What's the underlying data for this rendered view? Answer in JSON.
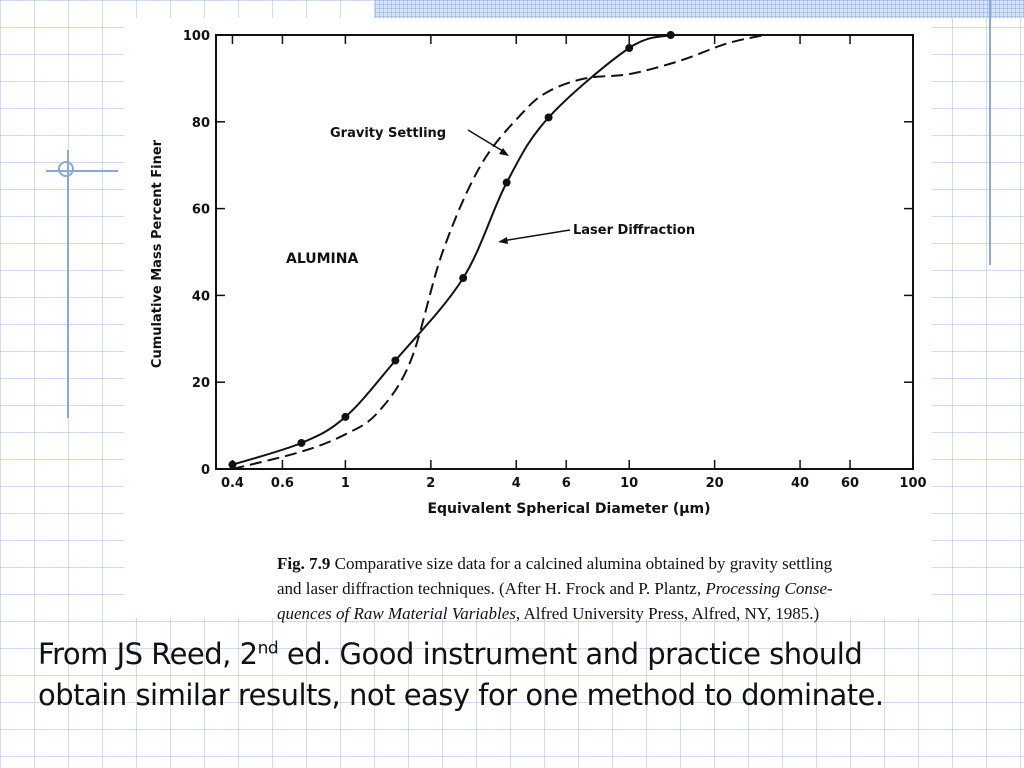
{
  "slide": {
    "footer_line1_pre": "From JS Reed, 2",
    "footer_sup": "nd",
    "footer_line1_post": " ed. Good instrument and practice should",
    "footer_line2": "obtain similar results, not easy for one method  to dominate."
  },
  "caption": {
    "fig_label": "Fig. 7.9",
    "line1": "  Comparative size data for a calcined alumina obtained by gravity settling",
    "line2_pre": "and laser diffraction techniques. (After H. Frock and P. Plantz, ",
    "line2_italic": "Processing Conse-",
    "line3_italic": "quences of Raw Material Variables",
    "line3_post": ", Alfred University Press, Alfred, NY, 1985.)"
  },
  "chart_data": {
    "type": "line",
    "xlabel": "Equivalent Spherical Diameter (µm)",
    "ylabel": "Cumulative Mass Percent Finer",
    "x_scale": "log",
    "xlim": [
      0.35,
      100
    ],
    "ylim": [
      0,
      100
    ],
    "x_ticks": [
      0.4,
      0.6,
      1,
      2,
      4,
      6,
      10,
      20,
      40,
      60,
      100
    ],
    "x_tick_labels": [
      "0.4",
      "0.6",
      "1",
      "2",
      "4",
      "6",
      "10",
      "20",
      "40",
      "60",
      "100"
    ],
    "y_ticks": [
      0,
      20,
      40,
      60,
      80,
      100
    ],
    "y_tick_labels": [
      "0",
      "20",
      "40",
      "60",
      "80",
      "100"
    ],
    "grid": false,
    "material_label": "ALUMINA",
    "series": [
      {
        "name": "Laser Diffraction",
        "style": "solid",
        "markers": true,
        "x": [
          0.4,
          0.7,
          1.0,
          1.5,
          2.6,
          3.7,
          5.2,
          10.0,
          14.0
        ],
        "y": [
          1,
          6,
          12,
          25,
          44,
          66,
          81,
          97,
          100
        ]
      },
      {
        "name": "Gravity Settling",
        "style": "dashed",
        "markers": false,
        "x": [
          0.4,
          0.7,
          1.0,
          1.3,
          1.7,
          2.2,
          3.0,
          4.2,
          5.2,
          7.0,
          10.0,
          15.0,
          22.0,
          30.0
        ],
        "y": [
          0,
          4,
          8,
          13,
          25,
          50,
          70,
          82,
          87,
          90,
          91,
          94,
          98,
          100
        ]
      }
    ],
    "annotations": [
      {
        "text": "Gravity Settling",
        "target_series": "Gravity Settling"
      },
      {
        "text": "Laser Diffraction",
        "target_series": "Laser Diffraction"
      }
    ]
  }
}
